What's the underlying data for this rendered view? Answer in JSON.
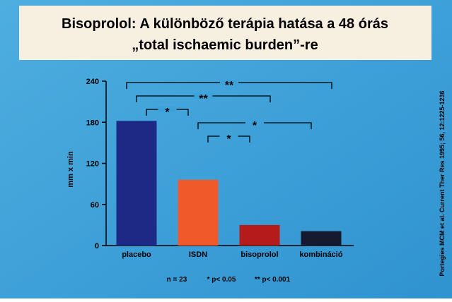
{
  "chart_data": {
    "type": "bar",
    "title": [
      "Bisoprolol: A különböző terápia hatása a 48 órás",
      "„total ischaemic burden”-re"
    ],
    "y_label": "mm x min",
    "categories": [
      "placebo",
      "ISDN",
      "bisoprolol",
      "kombináció"
    ],
    "values": [
      182,
      96,
      30,
      21
    ],
    "colors": [
      "#1c2a86",
      "#f05a2a",
      "#b41c1c",
      "#141a30"
    ],
    "ylim": [
      0,
      240
    ],
    "yticks": [
      0,
      60,
      120,
      180,
      240
    ],
    "significance": [
      {
        "from": 0,
        "to": 3,
        "label": "**"
      },
      {
        "from": 0,
        "to": 2,
        "label": "**"
      },
      {
        "from": 0,
        "to": 1,
        "label": "*"
      },
      {
        "from": 1,
        "to": 3,
        "label": "*"
      },
      {
        "from": 1,
        "to": 2,
        "label": "*"
      }
    ],
    "footnotes": [
      "n = 23",
      "* p< 0.05",
      "** p< 0.001"
    ],
    "source": "Portegies MCM et al. Current Ther Res 1995; 56, 12:1225-1236"
  }
}
